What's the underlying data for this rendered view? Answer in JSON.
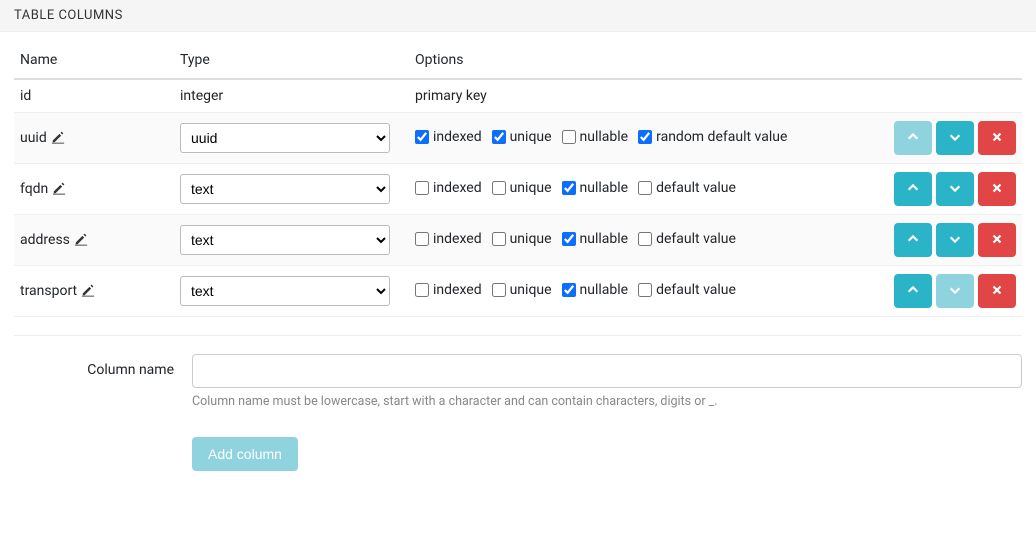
{
  "header": {
    "title": "TABLE COLUMNS"
  },
  "table": {
    "headers": {
      "name": "Name",
      "type": "Type",
      "options": "Options"
    },
    "option_labels": {
      "indexed": "indexed",
      "unique": "unique",
      "nullable": "nullable",
      "default_value": "default value",
      "random_default_value": "random default value"
    },
    "rows": [
      {
        "name": "id",
        "type_text": "integer",
        "type_editable": false,
        "options_text": "primary key",
        "options_editable": false,
        "actions": false
      },
      {
        "name": "uuid",
        "editable_name": true,
        "type_editable": true,
        "type_value": "uuid",
        "checkboxes": {
          "indexed": true,
          "unique": true,
          "nullable": false,
          "default_label_key": "random_default_value",
          "default_checked": true
        },
        "up_disabled": true,
        "down_disabled": false
      },
      {
        "name": "fqdn",
        "editable_name": true,
        "type_editable": true,
        "type_value": "text",
        "checkboxes": {
          "indexed": false,
          "unique": false,
          "nullable": true,
          "default_label_key": "default_value",
          "default_checked": false
        },
        "up_disabled": false,
        "down_disabled": false
      },
      {
        "name": "address",
        "editable_name": true,
        "type_editable": true,
        "type_value": "text",
        "checkboxes": {
          "indexed": false,
          "unique": false,
          "nullable": true,
          "default_label_key": "default_value",
          "default_checked": false
        },
        "up_disabled": false,
        "down_disabled": false
      },
      {
        "name": "transport",
        "editable_name": true,
        "type_editable": true,
        "type_value": "text",
        "checkboxes": {
          "indexed": false,
          "unique": false,
          "nullable": true,
          "default_label_key": "default_value",
          "default_checked": false
        },
        "up_disabled": false,
        "down_disabled": true
      }
    ]
  },
  "add_form": {
    "label": "Column name",
    "placeholder": "",
    "help": "Column name must be lowercase, start with a character and can contain characters, digits or _.",
    "button": "Add column"
  },
  "colors": {
    "info": "#2bb4c7",
    "info_disabled": "#8fd3de",
    "danger": "#e24545",
    "checkbox_accent": "#0d6efd"
  }
}
